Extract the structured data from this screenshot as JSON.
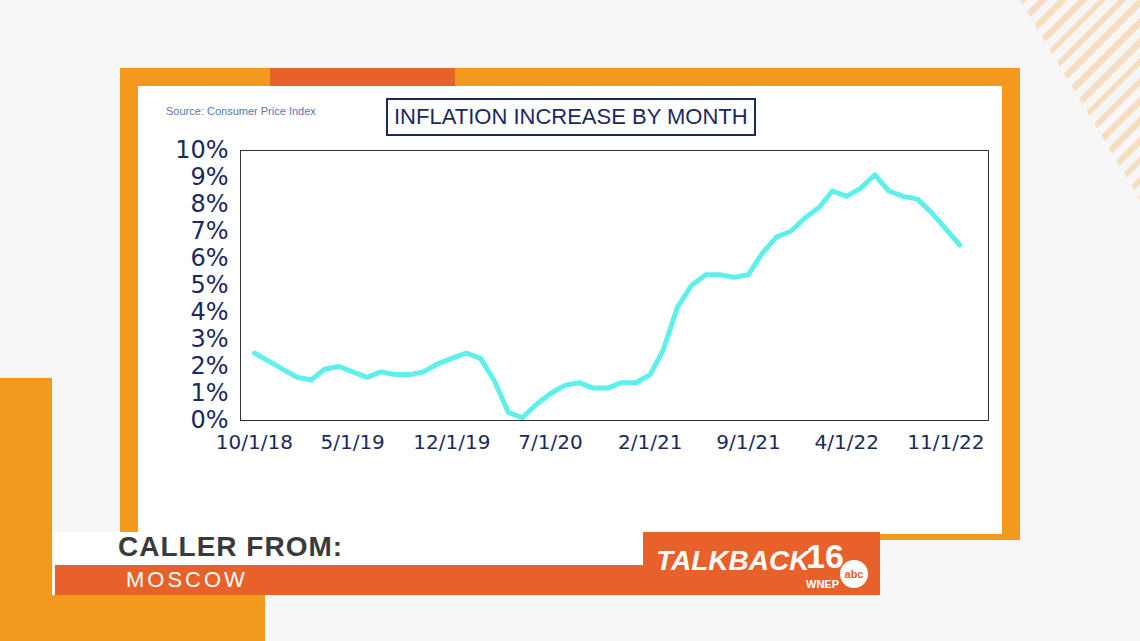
{
  "chart_data": {
    "type": "line",
    "title": "INFLATION INCREASE BY MONTH",
    "source": "Source: Consumer Price Index",
    "x": [
      "2018-10-01",
      "2018-11-01",
      "2018-12-01",
      "2019-01-01",
      "2019-02-01",
      "2019-03-01",
      "2019-04-01",
      "2019-05-01",
      "2019-06-01",
      "2019-07-01",
      "2019-08-01",
      "2019-09-01",
      "2019-10-01",
      "2019-11-01",
      "2019-12-01",
      "2020-01-01",
      "2020-02-01",
      "2020-03-01",
      "2020-04-01",
      "2020-05-01",
      "2020-06-01",
      "2020-07-01",
      "2020-08-01",
      "2020-09-01",
      "2020-10-01",
      "2020-11-01",
      "2020-12-01",
      "2021-01-01",
      "2021-02-01",
      "2021-03-01",
      "2021-04-01",
      "2021-05-01",
      "2021-06-01",
      "2021-07-01",
      "2021-08-01",
      "2021-09-01",
      "2021-10-01",
      "2021-11-01",
      "2021-12-01",
      "2022-01-01",
      "2022-02-01",
      "2022-03-01",
      "2022-04-01",
      "2022-05-01",
      "2022-06-01",
      "2022-07-01",
      "2022-08-01",
      "2022-09-01",
      "2022-10-01",
      "2022-11-01",
      "2022-12-01"
    ],
    "values": [
      2.5,
      2.2,
      1.9,
      1.6,
      1.5,
      1.9,
      2.0,
      1.8,
      1.6,
      1.8,
      1.7,
      1.7,
      1.8,
      2.1,
      2.3,
      2.5,
      2.3,
      1.5,
      0.3,
      0.1,
      0.6,
      1.0,
      1.3,
      1.4,
      1.2,
      1.2,
      1.4,
      1.4,
      1.7,
      2.6,
      4.2,
      5.0,
      5.4,
      5.4,
      5.3,
      5.4,
      6.2,
      6.8,
      7.0,
      7.5,
      7.9,
      8.5,
      8.3,
      8.6,
      9.1,
      8.5,
      8.3,
      8.2,
      7.7,
      7.1,
      6.5
    ],
    "color": "#5ff0ec",
    "xlim": [
      "2018-09-01",
      "2023-02-01"
    ],
    "xticks": [
      {
        "value": "2018-10-01",
        "label": "10/1/18"
      },
      {
        "value": "2019-05-01",
        "label": "5/1/19"
      },
      {
        "value": "2019-12-01",
        "label": "12/1/19"
      },
      {
        "value": "2020-07-01",
        "label": "7/1/20"
      },
      {
        "value": "2021-02-01",
        "label": "2/1/21"
      },
      {
        "value": "2021-09-01",
        "label": "9/1/21"
      },
      {
        "value": "2022-04-01",
        "label": "4/1/22"
      },
      {
        "value": "2022-11-01",
        "label": "11/1/22"
      }
    ],
    "ylim": [
      0,
      10
    ],
    "yticks": [
      {
        "value": 0,
        "label": "0%"
      },
      {
        "value": 1,
        "label": "1%"
      },
      {
        "value": 2,
        "label": "2%"
      },
      {
        "value": 3,
        "label": "3%"
      },
      {
        "value": 4,
        "label": "4%"
      },
      {
        "value": 5,
        "label": "5%"
      },
      {
        "value": 6,
        "label": "6%"
      },
      {
        "value": 7,
        "label": "7%"
      },
      {
        "value": 8,
        "label": "8%"
      },
      {
        "value": 9,
        "label": "9%"
      },
      {
        "value": 10,
        "label": "10%"
      }
    ],
    "grid": false
  },
  "lower_third": {
    "label": "CALLER FROM:",
    "location": "MOSCOW",
    "show": "TALKBACK",
    "channel": "16",
    "station": "WNEP",
    "network": "abc"
  }
}
